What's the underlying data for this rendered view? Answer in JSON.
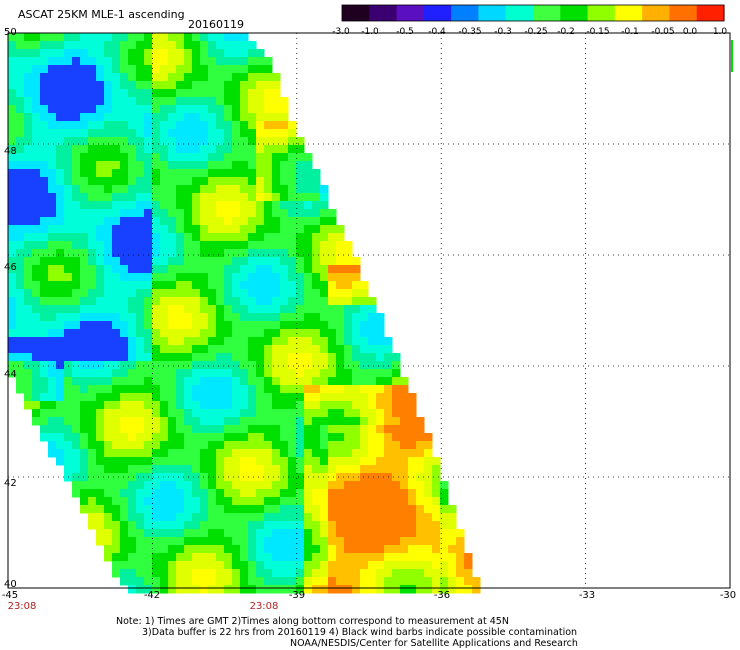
{
  "title": "ASCAT 25KM MLE-1 ascending",
  "date": "20160119",
  "colorbar": {
    "labels": [
      "-3.0",
      "-1.0",
      "-0.5",
      "-0.4",
      "-0.35",
      "-0.3",
      "-0.25",
      "-0.2",
      "-0.15",
      "-0.1",
      "-0.05",
      "0.0",
      "1.0"
    ],
    "colors": [
      "#200020",
      "#3a0070",
      "#5a10c0",
      "#2020ff",
      "#0080ff",
      "#00d8ff",
      "#00ffd0",
      "#40ff40",
      "#00e000",
      "#90ff00",
      "#ffff00",
      "#ffb000",
      "#ff7000",
      "#ff2000"
    ]
  },
  "map": {
    "lon_labels": [
      "-45",
      "-42",
      "-39",
      "-36",
      "-33",
      "-30"
    ],
    "lat_labels": [
      "50",
      "48",
      "46",
      "44",
      "42",
      "40"
    ],
    "lon_range": [
      -45,
      -30
    ],
    "lat_range": [
      40,
      50
    ],
    "time_labels": [
      {
        "lon": -45,
        "text": "23:08"
      },
      {
        "lon": -39,
        "text": "23:08"
      }
    ]
  },
  "notes": {
    "line1": "Note: 1) Times are GMT 2)Times along bottom correspond to measurement at 45N",
    "line2": "3)Data buffer is 22 hrs from 20160119 4) Black wind barbs indicate possible contamination",
    "line3": "NOAA/NESDIS/Center for Satellite Applications and Research"
  }
}
